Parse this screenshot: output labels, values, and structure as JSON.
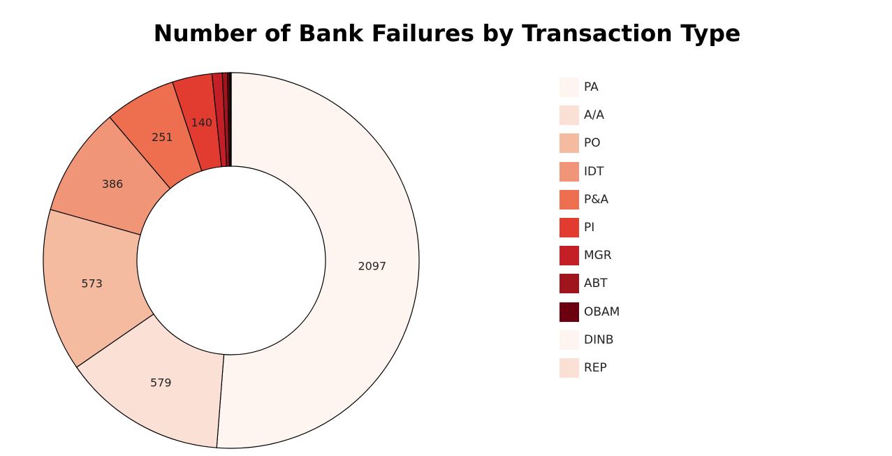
{
  "chart_data": {
    "type": "pie",
    "title": "Number of Bank Failures by Transaction Type",
    "donut": true,
    "legend_position": "right",
    "legend": [
      "PA",
      "A/A",
      "PO",
      "IDT",
      "P&A",
      "PI",
      "MGR",
      "ABT",
      "OBAM",
      "DINB",
      "REP"
    ],
    "slices": [
      {
        "label": "PA",
        "value": 2097,
        "color": "#fff5f0",
        "show_value": true
      },
      {
        "label": "A/A",
        "value": 579,
        "color": "#fbe0d5",
        "show_value": true
      },
      {
        "label": "PO",
        "value": 573,
        "color": "#f5bba1",
        "show_value": true
      },
      {
        "label": "IDT",
        "value": 386,
        "color": "#f09577",
        "show_value": true
      },
      {
        "label": "P&A",
        "value": 251,
        "color": "#ed6f4f",
        "show_value": true
      },
      {
        "label": "PI",
        "value": 140,
        "color": "#e23b2f",
        "show_value": true
      },
      {
        "label": "MGR",
        "value": 36,
        "color": "#c41f26",
        "show_value": false
      },
      {
        "label": "ABT",
        "value": 18,
        "color": "#a0151d",
        "show_value": false
      },
      {
        "label": "OBAM",
        "value": 8,
        "color": "#6a0010",
        "show_value": false
      },
      {
        "label": "DINB",
        "value": 3,
        "color": "#fff5f0",
        "show_value": false
      },
      {
        "label": "REP",
        "value": 2,
        "color": "#fbe0d5",
        "show_value": false
      }
    ]
  }
}
